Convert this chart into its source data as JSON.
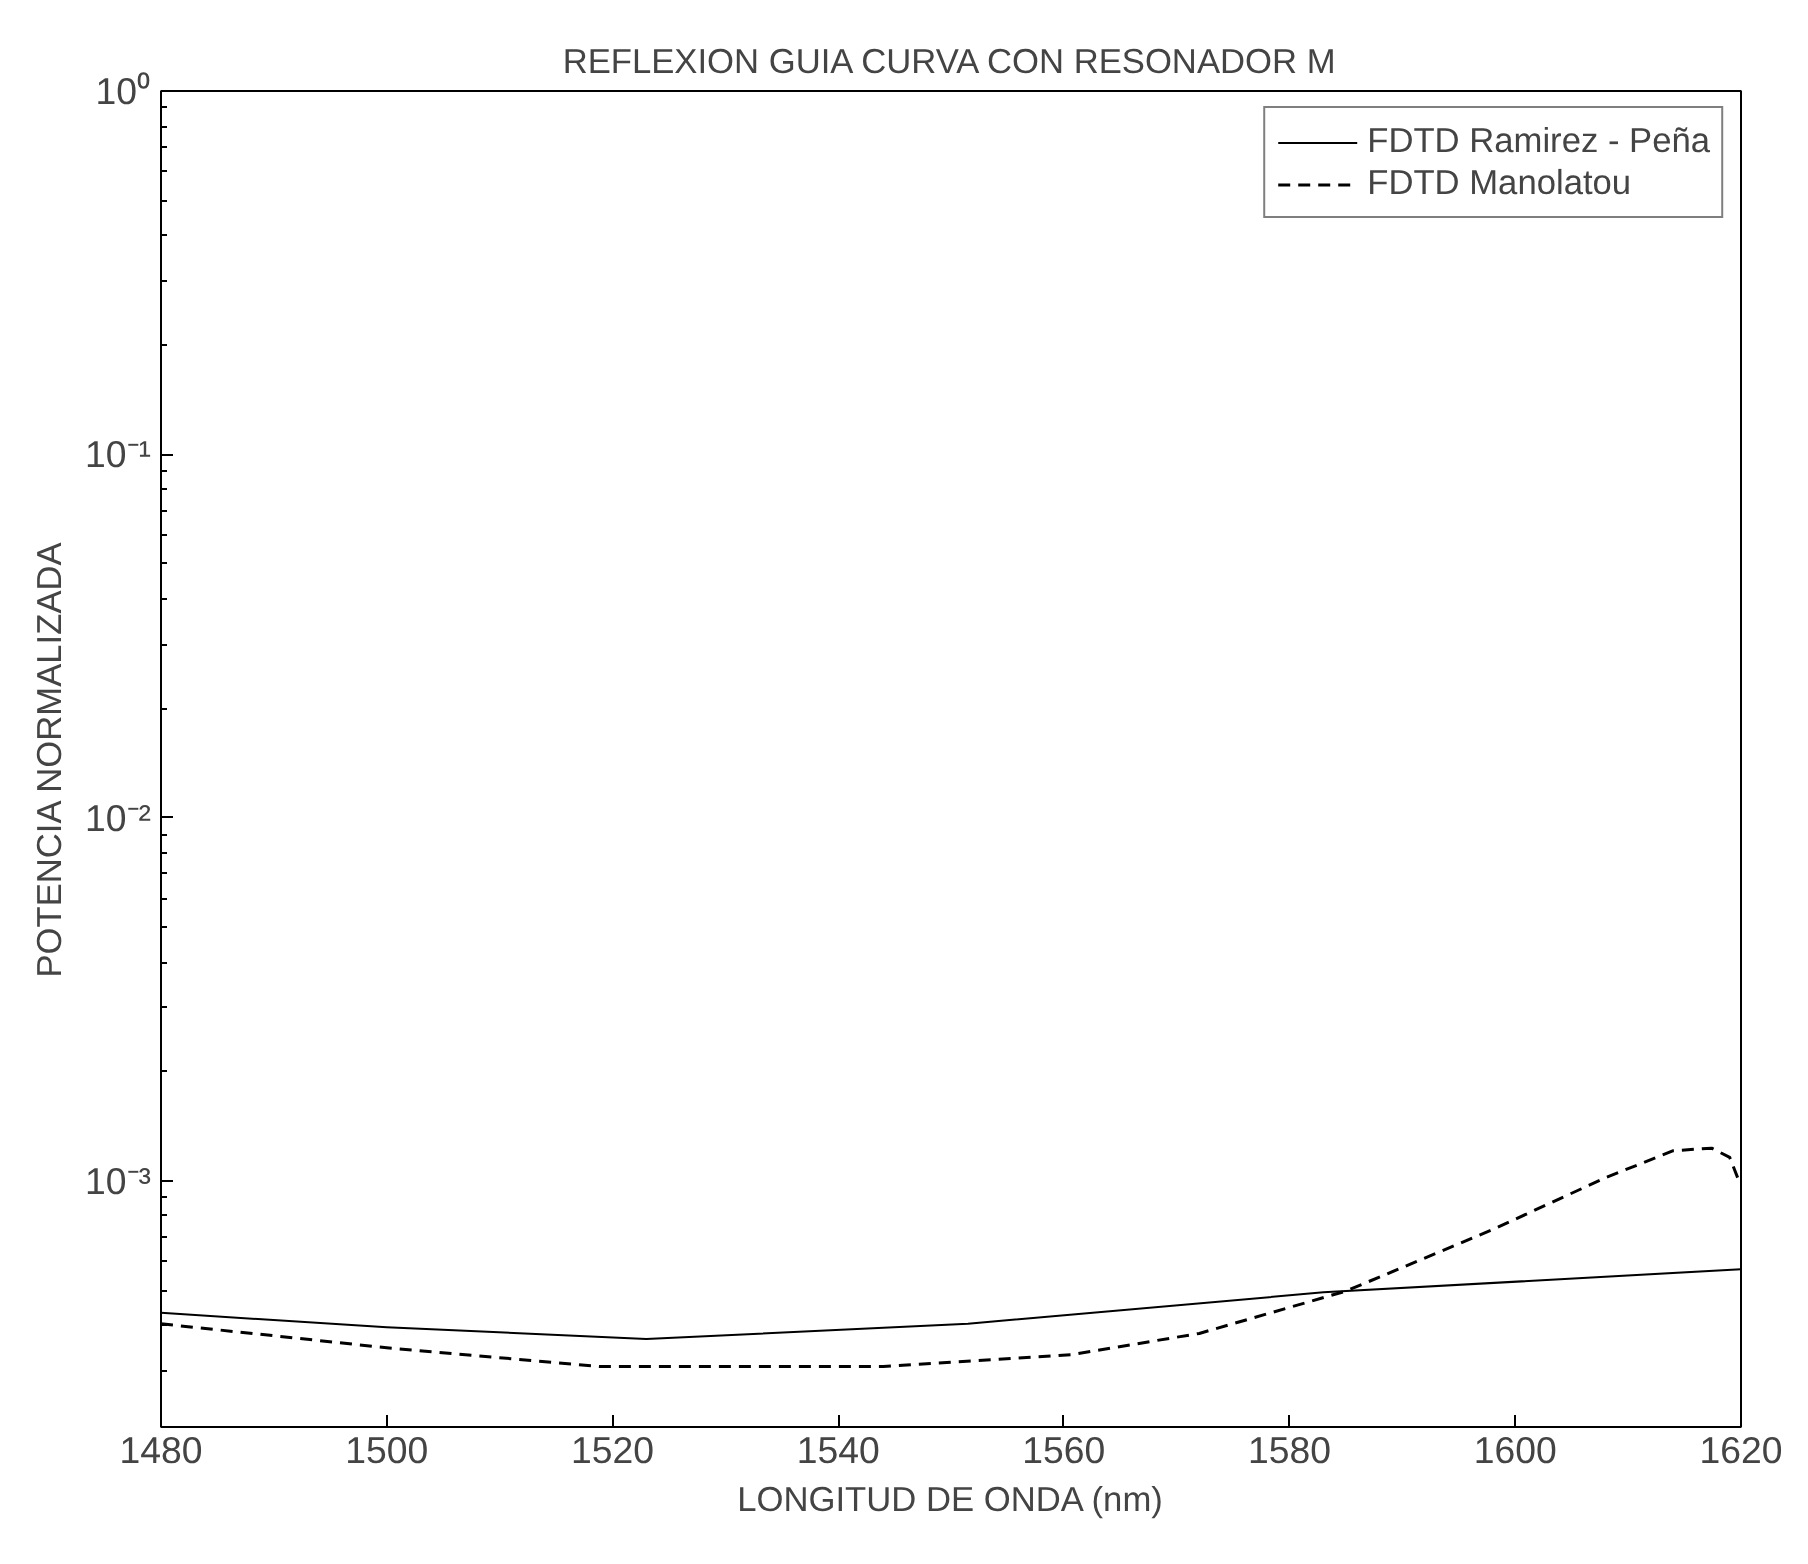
{
  "chart_data": {
    "type": "line",
    "title": "REFLEXION GUIA CURVA CON RESONADOR M",
    "xlabel": "LONGITUD DE ONDA (nm)",
    "ylabel": "POTENCIA NORMALIZADA",
    "log": "y",
    "xlim": [
      1480,
      1620
    ],
    "xticks": [
      1480,
      1500,
      1520,
      1540,
      1560,
      1580,
      1600,
      1620
    ],
    "ylim": [
      0.00021,
      1
    ],
    "yticks": [
      {
        "value": 1,
        "label": "10⁰"
      },
      {
        "value": 0.1,
        "label": "10⁻¹"
      },
      {
        "value": 0.01,
        "label": "10⁻²"
      },
      {
        "value": 0.001,
        "label": "10⁻³"
      }
    ],
    "grid": false,
    "legend": "top right",
    "series": [
      {
        "name": "FDTD Ramirez - Peña",
        "color": "#000000",
        "line_style": "solid",
        "x": [
          1480,
          1500,
          1523,
          1551.5,
          1583,
          1620
        ],
        "values": [
          0.000433,
          0.000395,
          0.000367,
          0.000404,
          0.000493,
          0.000571
        ]
      },
      {
        "name": "FDTD Manolatou",
        "color": "#000000",
        "line_style": "dashed",
        "x": [
          1480,
          1500,
          1519,
          1544,
          1560.6,
          1572,
          1585,
          1598,
          1608,
          1614,
          1617.4,
          1619,
          1619.7
        ],
        "values": [
          0.000404,
          0.000347,
          0.000308,
          0.000308,
          0.000332,
          0.00038,
          0.000497,
          0.000734,
          0.00102,
          0.00121,
          0.00123,
          0.00116,
          0.00102
        ]
      }
    ]
  }
}
